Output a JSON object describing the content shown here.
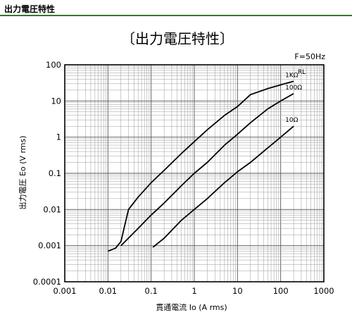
{
  "header": {
    "title": "出力電圧特性"
  },
  "chart_data": {
    "type": "line",
    "title": "〔出力電圧特性〕",
    "note": "F=50Hz",
    "xlabel": "貫通電流 Io (A rms)",
    "ylabel": "出力電圧 Eo (V rms)",
    "xscale": "log",
    "yscale": "log",
    "xlim": [
      0.001,
      1000
    ],
    "ylim": [
      0.0001,
      100
    ],
    "grid": true,
    "x_ticks": [
      "0.001",
      "0.01",
      "0.1",
      "1",
      "10",
      "100",
      "1000"
    ],
    "y_ticks": [
      "100",
      "10",
      "1",
      "0.1",
      "0.01",
      "0.001",
      "0.0001"
    ],
    "legend_title": "RL",
    "series": [
      {
        "name": "1KΩ",
        "points": [
          [
            0.01,
            0.0007
          ],
          [
            0.015,
            0.00085
          ],
          [
            0.02,
            0.0013
          ],
          [
            0.025,
            0.004
          ],
          [
            0.03,
            0.01
          ],
          [
            0.05,
            0.022
          ],
          [
            0.1,
            0.055
          ],
          [
            0.2,
            0.12
          ],
          [
            0.5,
            0.35
          ],
          [
            1,
            0.75
          ],
          [
            2,
            1.6
          ],
          [
            5,
            4
          ],
          [
            10,
            7
          ],
          [
            20,
            15
          ],
          [
            50,
            22
          ],
          [
            100,
            28
          ],
          [
            200,
            35
          ]
        ]
      },
      {
        "name": "100Ω",
        "points": [
          [
            0.02,
            0.001
          ],
          [
            0.05,
            0.003
          ],
          [
            0.1,
            0.007
          ],
          [
            0.2,
            0.015
          ],
          [
            0.5,
            0.045
          ],
          [
            1,
            0.1
          ],
          [
            2,
            0.2
          ],
          [
            5,
            0.6
          ],
          [
            10,
            1.2
          ],
          [
            20,
            2.5
          ],
          [
            50,
            6
          ],
          [
            100,
            10
          ],
          [
            200,
            16
          ]
        ]
      },
      {
        "name": "10Ω",
        "points": [
          [
            0.11,
            0.0009
          ],
          [
            0.2,
            0.0016
          ],
          [
            0.5,
            0.005
          ],
          [
            1,
            0.01
          ],
          [
            2,
            0.02
          ],
          [
            5,
            0.055
          ],
          [
            10,
            0.11
          ],
          [
            20,
            0.2
          ],
          [
            50,
            0.5
          ],
          [
            100,
            1
          ],
          [
            200,
            2
          ]
        ]
      }
    ]
  }
}
